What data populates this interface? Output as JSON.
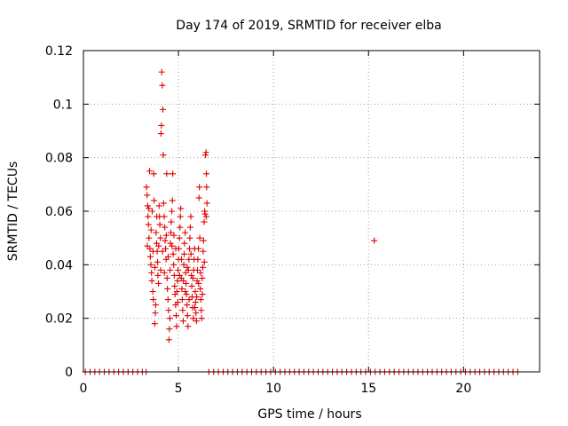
{
  "chart_data": {
    "type": "scatter",
    "title": "Day 174 of 2019, SRMTID for receiver elba",
    "xlabel": "GPS time / hours",
    "ylabel": "SRMTID / TECUs",
    "xlim": [
      0,
      24
    ],
    "ylim": [
      0,
      0.12
    ],
    "xticks": [
      "0",
      "5",
      "10",
      "15",
      "20"
    ],
    "yticks": [
      "0",
      "0.02",
      "0.04",
      "0.06",
      "0.08",
      "0.1",
      "0.12"
    ],
    "grid": true,
    "legend": "none",
    "marker": "+",
    "color": "#e00000",
    "series": [
      {
        "points": [
          [
            3.32,
            0.069
          ],
          [
            3.35,
            0.066
          ],
          [
            3.38,
            0.062
          ],
          [
            3.4,
            0.058
          ],
          [
            3.42,
            0.055
          ],
          [
            3.45,
            0.05
          ],
          [
            3.48,
            0.075
          ],
          [
            3.5,
            0.046
          ],
          [
            3.52,
            0.043
          ],
          [
            3.55,
            0.04
          ],
          [
            3.58,
            0.037
          ],
          [
            3.6,
            0.034
          ],
          [
            3.62,
            0.06
          ],
          [
            3.65,
            0.03
          ],
          [
            3.68,
            0.027
          ],
          [
            3.7,
            0.074
          ],
          [
            3.72,
            0.064
          ],
          [
            3.75,
            0.018
          ],
          [
            3.78,
            0.022
          ],
          [
            3.8,
            0.025
          ],
          [
            3.82,
            0.052
          ],
          [
            3.85,
            0.048
          ],
          [
            3.88,
            0.045
          ],
          [
            3.9,
            0.041
          ],
          [
            3.92,
            0.036
          ],
          [
            3.95,
            0.033
          ],
          [
            3.98,
            0.062
          ],
          [
            4.0,
            0.058
          ],
          [
            4.02,
            0.055
          ],
          [
            4.05,
            0.05
          ],
          [
            4.08,
            0.089
          ],
          [
            4.1,
            0.092
          ],
          [
            4.12,
            0.112
          ],
          [
            4.15,
            0.107
          ],
          [
            4.18,
            0.098
          ],
          [
            4.2,
            0.081
          ],
          [
            4.22,
            0.063
          ],
          [
            4.25,
            0.058
          ],
          [
            4.28,
            0.054
          ],
          [
            4.3,
            0.049
          ],
          [
            4.32,
            0.046
          ],
          [
            4.35,
            0.042
          ],
          [
            4.38,
            0.074
          ],
          [
            4.4,
            0.035
          ],
          [
            4.42,
            0.031
          ],
          [
            4.45,
            0.027
          ],
          [
            4.48,
            0.023
          ],
          [
            4.5,
            0.012
          ],
          [
            4.52,
            0.016
          ],
          [
            4.55,
            0.02
          ],
          [
            4.58,
            0.048
          ],
          [
            4.6,
            0.052
          ],
          [
            4.62,
            0.056
          ],
          [
            4.65,
            0.06
          ],
          [
            4.68,
            0.064
          ],
          [
            4.7,
            0.074
          ],
          [
            4.72,
            0.044
          ],
          [
            4.75,
            0.04
          ],
          [
            4.78,
            0.036
          ],
          [
            4.8,
            0.032
          ],
          [
            4.82,
            0.029
          ],
          [
            4.85,
            0.025
          ],
          [
            4.88,
            0.021
          ],
          [
            4.9,
            0.017
          ],
          [
            4.92,
            0.03
          ],
          [
            4.95,
            0.034
          ],
          [
            4.98,
            0.038
          ],
          [
            5.0,
            0.042
          ],
          [
            5.02,
            0.046
          ],
          [
            5.05,
            0.05
          ],
          [
            5.08,
            0.054
          ],
          [
            5.1,
            0.058
          ],
          [
            5.12,
            0.061
          ],
          [
            5.15,
            0.035
          ],
          [
            5.18,
            0.031
          ],
          [
            5.2,
            0.027
          ],
          [
            5.22,
            0.023
          ],
          [
            5.25,
            0.019
          ],
          [
            5.28,
            0.04
          ],
          [
            5.3,
            0.044
          ],
          [
            5.32,
            0.048
          ],
          [
            5.35,
            0.052
          ],
          [
            5.38,
            0.037
          ],
          [
            5.4,
            0.033
          ],
          [
            5.42,
            0.029
          ],
          [
            5.45,
            0.025
          ],
          [
            5.48,
            0.021
          ],
          [
            5.5,
            0.017
          ],
          [
            5.52,
            0.038
          ],
          [
            5.55,
            0.042
          ],
          [
            5.58,
            0.046
          ],
          [
            5.6,
            0.05
          ],
          [
            5.62,
            0.054
          ],
          [
            5.65,
            0.058
          ],
          [
            5.68,
            0.036
          ],
          [
            5.7,
            0.032
          ],
          [
            5.72,
            0.028
          ],
          [
            5.75,
            0.024
          ],
          [
            5.78,
            0.02
          ],
          [
            5.8,
            0.038
          ],
          [
            5.82,
            0.042
          ],
          [
            5.85,
            0.046
          ],
          [
            5.88,
            0.03
          ],
          [
            5.9,
            0.026
          ],
          [
            5.92,
            0.022
          ],
          [
            5.95,
            0.019
          ],
          [
            5.98,
            0.034
          ],
          [
            6.0,
            0.038
          ],
          [
            6.02,
            0.042
          ],
          [
            6.05,
            0.046
          ],
          [
            6.08,
            0.065
          ],
          [
            6.1,
            0.069
          ],
          [
            6.12,
            0.05
          ],
          [
            6.15,
            0.031
          ],
          [
            6.18,
            0.027
          ],
          [
            6.2,
            0.023
          ],
          [
            6.22,
            0.02
          ],
          [
            6.25,
            0.035
          ],
          [
            6.28,
            0.039
          ],
          [
            6.3,
            0.045
          ],
          [
            6.32,
            0.049
          ],
          [
            6.35,
            0.056
          ],
          [
            6.38,
            0.06
          ],
          [
            6.4,
            0.059
          ],
          [
            6.42,
            0.081
          ],
          [
            6.45,
            0.082
          ],
          [
            6.47,
            0.074
          ],
          [
            6.48,
            0.069
          ],
          [
            6.5,
            0.063
          ],
          [
            3.36,
            0.047
          ],
          [
            3.44,
            0.061
          ],
          [
            3.56,
            0.053
          ],
          [
            3.66,
            0.045
          ],
          [
            3.76,
            0.039
          ],
          [
            3.86,
            0.058
          ],
          [
            3.96,
            0.047
          ],
          [
            4.06,
            0.038
          ],
          [
            4.16,
            0.045
          ],
          [
            4.26,
            0.037
          ],
          [
            4.36,
            0.051
          ],
          [
            4.46,
            0.043
          ],
          [
            4.56,
            0.038
          ],
          [
            4.66,
            0.047
          ],
          [
            4.76,
            0.051
          ],
          [
            4.86,
            0.046
          ],
          [
            4.96,
            0.026
          ],
          [
            5.06,
            0.036
          ],
          [
            5.16,
            0.042
          ],
          [
            5.26,
            0.034
          ],
          [
            5.36,
            0.03
          ],
          [
            5.46,
            0.039
          ],
          [
            5.56,
            0.027
          ],
          [
            5.66,
            0.044
          ],
          [
            5.76,
            0.035
          ],
          [
            5.86,
            0.024
          ],
          [
            5.96,
            0.028
          ],
          [
            6.06,
            0.033
          ],
          [
            6.16,
            0.037
          ],
          [
            6.26,
            0.029
          ],
          [
            6.36,
            0.041
          ],
          [
            6.46,
            0.058
          ],
          [
            15.3,
            0.049
          ],
          [
            0.1,
            0
          ],
          [
            0.35,
            0
          ],
          [
            0.6,
            0
          ],
          [
            0.85,
            0
          ],
          [
            1.1,
            0
          ],
          [
            1.35,
            0
          ],
          [
            1.6,
            0
          ],
          [
            1.85,
            0
          ],
          [
            2.1,
            0
          ],
          [
            2.35,
            0
          ],
          [
            2.6,
            0
          ],
          [
            2.85,
            0
          ],
          [
            3.1,
            0
          ],
          [
            3.3,
            0
          ],
          [
            6.6,
            0
          ],
          [
            6.85,
            0
          ],
          [
            7.1,
            0
          ],
          [
            7.35,
            0
          ],
          [
            7.6,
            0
          ],
          [
            7.85,
            0
          ],
          [
            8.1,
            0
          ],
          [
            8.35,
            0
          ],
          [
            8.6,
            0
          ],
          [
            8.85,
            0
          ],
          [
            9.1,
            0
          ],
          [
            9.35,
            0
          ],
          [
            9.6,
            0
          ],
          [
            9.85,
            0
          ],
          [
            10.1,
            0
          ],
          [
            10.35,
            0
          ],
          [
            10.6,
            0
          ],
          [
            10.85,
            0
          ],
          [
            11.1,
            0
          ],
          [
            11.35,
            0
          ],
          [
            11.6,
            0
          ],
          [
            11.85,
            0
          ],
          [
            12.1,
            0
          ],
          [
            12.35,
            0
          ],
          [
            12.6,
            0
          ],
          [
            12.85,
            0
          ],
          [
            13.1,
            0
          ],
          [
            13.35,
            0
          ],
          [
            13.6,
            0
          ],
          [
            13.85,
            0
          ],
          [
            14.1,
            0
          ],
          [
            14.35,
            0
          ],
          [
            14.6,
            0
          ],
          [
            14.85,
            0
          ],
          [
            15.1,
            0
          ],
          [
            15.35,
            0
          ],
          [
            15.6,
            0
          ],
          [
            15.85,
            0
          ],
          [
            16.1,
            0
          ],
          [
            16.35,
            0
          ],
          [
            16.6,
            0
          ],
          [
            16.85,
            0
          ],
          [
            17.1,
            0
          ],
          [
            17.35,
            0
          ],
          [
            17.6,
            0
          ],
          [
            17.85,
            0
          ],
          [
            18.1,
            0
          ],
          [
            18.35,
            0
          ],
          [
            18.6,
            0
          ],
          [
            18.85,
            0
          ],
          [
            19.1,
            0
          ],
          [
            19.35,
            0
          ],
          [
            19.6,
            0
          ],
          [
            19.85,
            0
          ],
          [
            20.1,
            0
          ],
          [
            20.35,
            0
          ],
          [
            20.6,
            0
          ],
          [
            20.85,
            0
          ],
          [
            21.1,
            0
          ],
          [
            21.35,
            0
          ],
          [
            21.6,
            0
          ],
          [
            21.85,
            0
          ],
          [
            22.1,
            0
          ],
          [
            22.35,
            0
          ],
          [
            22.6,
            0
          ],
          [
            22.85,
            0
          ]
        ]
      }
    ]
  }
}
